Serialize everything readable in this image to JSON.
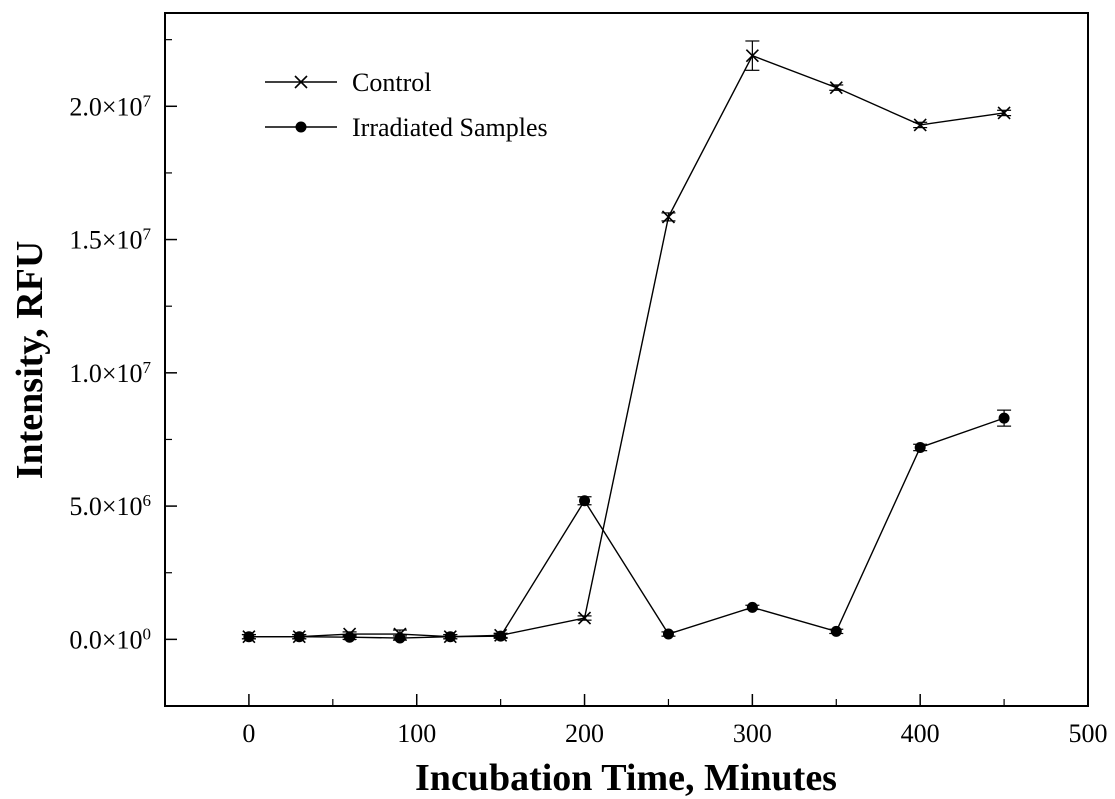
{
  "chart_data": {
    "type": "line",
    "xlabel": "Incubation Time, Minutes",
    "ylabel": "Intensity, RFU",
    "xlim": [
      -50,
      500
    ],
    "ylim": [
      -2500000,
      23500000
    ],
    "x_ticks": [
      0,
      100,
      200,
      300,
      400,
      500
    ],
    "x_tick_labels": [
      "0",
      "100",
      "200",
      "300",
      "400",
      "500"
    ],
    "y_ticks": [
      0,
      5000000,
      10000000,
      15000000,
      20000000
    ],
    "y_tick_labels": [
      {
        "mantissa": "0.0×10",
        "exp": "0"
      },
      {
        "mantissa": "5.0×10",
        "exp": "6"
      },
      {
        "mantissa": "1.0×10",
        "exp": "7"
      },
      {
        "mantissa": "1.5×10",
        "exp": "7"
      },
      {
        "mantissa": "2.0×10",
        "exp": "7"
      }
    ],
    "legend_position": "top-left",
    "grid": false,
    "series": [
      {
        "name": "Control",
        "marker": "x",
        "color": "#000000",
        "x": [
          0,
          30,
          60,
          90,
          120,
          150,
          200,
          250,
          300,
          350,
          400,
          450
        ],
        "y": [
          100000,
          100000,
          200000,
          200000,
          100000,
          150000,
          800000,
          15850000,
          21900000,
          20700000,
          19300000,
          19750000
        ],
        "err": [
          80000,
          80000,
          80000,
          150000,
          80000,
          80000,
          80000,
          150000,
          550000,
          100000,
          100000,
          100000
        ]
      },
      {
        "name": "Irradiated Samples",
        "marker": "circle",
        "color": "#000000",
        "x": [
          0,
          30,
          60,
          90,
          120,
          150,
          200,
          250,
          300,
          350,
          400,
          450
        ],
        "y": [
          100000,
          100000,
          80000,
          50000,
          100000,
          120000,
          5200000,
          200000,
          1200000,
          300000,
          7200000,
          8300000
        ],
        "err": [
          80000,
          80000,
          80000,
          80000,
          80000,
          80000,
          150000,
          80000,
          80000,
          80000,
          120000,
          300000
        ]
      }
    ]
  }
}
